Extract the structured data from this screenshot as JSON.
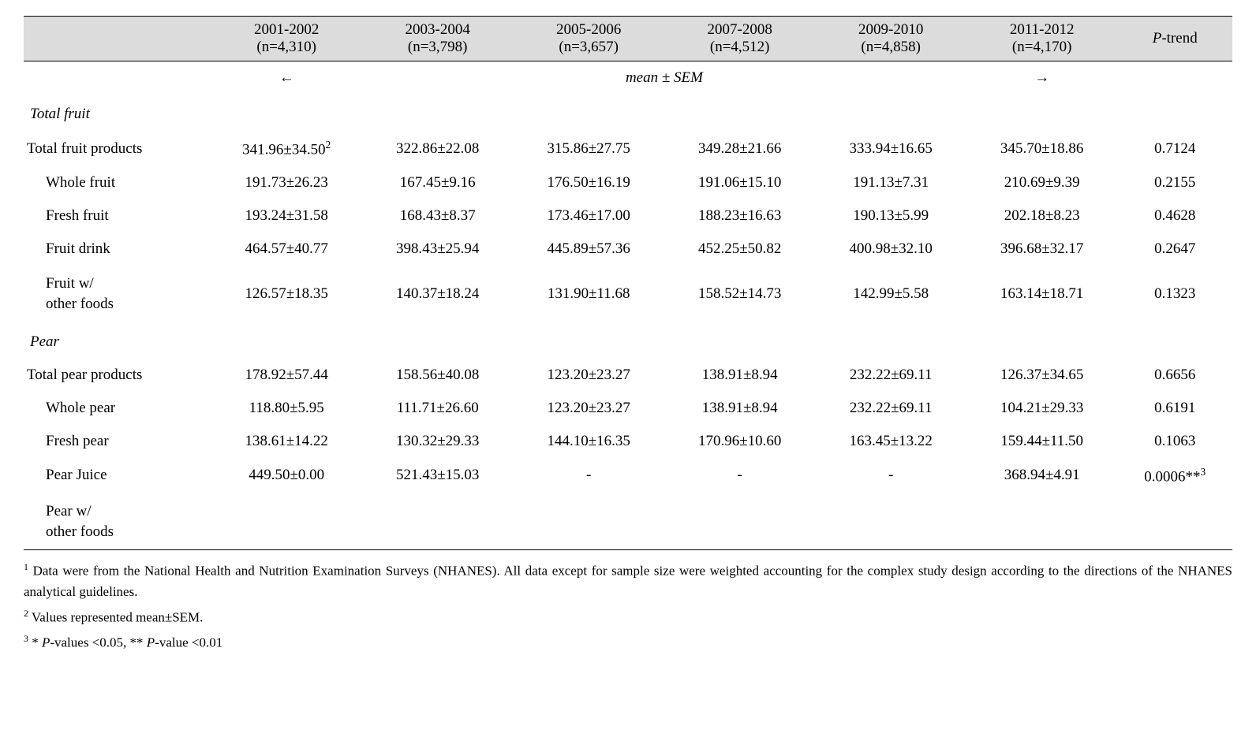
{
  "table": {
    "columns": [
      {
        "period": "2001-2002",
        "n": "(n=4,310)"
      },
      {
        "period": "2003-2004",
        "n": "(n=3,798)"
      },
      {
        "period": "2005-2006",
        "n": "(n=3,657)"
      },
      {
        "period": "2007-2008",
        "n": "(n=4,512)"
      },
      {
        "period": "2009-2010",
        "n": "(n=4,858)"
      },
      {
        "period": "2011-2012",
        "n": "(n=4,170)"
      }
    ],
    "ptrend_label_prefix": "P",
    "ptrend_label_suffix": "-trend",
    "subheader": {
      "left_arrow": "←",
      "text": "mean ± SEM",
      "right_arrow": "→"
    },
    "sections": [
      {
        "title": "Total fruit",
        "rows": [
          {
            "label": "Total fruit products",
            "indent": 0,
            "cells": [
              "341.96±34.50",
              "322.86±22.08",
              "315.86±27.75",
              "349.28±21.66",
              "333.94±16.65",
              "345.70±18.86"
            ],
            "first_sup": "2",
            "ptrend": "0.7124"
          },
          {
            "label": "Whole fruit",
            "indent": 1,
            "cells": [
              "191.73±26.23",
              "167.45±9.16",
              "176.50±16.19",
              "191.06±15.10",
              "191.13±7.31",
              "210.69±9.39"
            ],
            "ptrend": "0.2155"
          },
          {
            "label": "Fresh fruit",
            "indent": 1,
            "cells": [
              "193.24±31.58",
              "168.43±8.37",
              "173.46±17.00",
              "188.23±16.63",
              "190.13±5.99",
              "202.18±8.23"
            ],
            "ptrend": "0.4628"
          },
          {
            "label": "Fruit drink",
            "indent": 1,
            "cells": [
              "464.57±40.77",
              "398.43±25.94",
              "445.89±57.36",
              "452.25±50.82",
              "400.98±32.10",
              "396.68±32.17"
            ],
            "ptrend": "0.2647"
          },
          {
            "label_html": "Fruit w/<br>other foods",
            "indent": 1,
            "cells": [
              "126.57±18.35",
              "140.37±18.24",
              "131.90±11.68",
              "158.52±14.73",
              "142.99±5.58",
              "163.14±18.71"
            ],
            "ptrend": "0.1323"
          }
        ]
      },
      {
        "title": "Pear",
        "rows": [
          {
            "label": "Total pear products",
            "indent": 0,
            "cells": [
              "178.92±57.44",
              "158.56±40.08",
              "123.20±23.27",
              "138.91±8.94",
              "232.22±69.11",
              "126.37±34.65"
            ],
            "ptrend": "0.6656"
          },
          {
            "label": "Whole pear",
            "indent": 1,
            "cells": [
              "118.80±5.95",
              "111.71±26.60",
              "123.20±23.27",
              "138.91±8.94",
              "232.22±69.11",
              "104.21±29.33"
            ],
            "ptrend": "0.6191"
          },
          {
            "label": "Fresh pear",
            "indent": 1,
            "cells": [
              "138.61±14.22",
              "130.32±29.33",
              "144.10±16.35",
              "170.96±10.60",
              "163.45±13.22",
              "159.44±11.50"
            ],
            "ptrend": "0.1063"
          },
          {
            "label": "Pear Juice",
            "indent": 1,
            "cells": [
              "449.50±0.00",
              "521.43±15.03",
              "-",
              "-",
              "-",
              "368.94±4.91"
            ],
            "ptrend": "0.0006**",
            "ptrend_sup": "3"
          },
          {
            "label_html": "Pear w/<br>other foods",
            "indent": 1,
            "cells": [
              "",
              "",
              "",
              "",
              "",
              ""
            ],
            "ptrend": ""
          }
        ]
      }
    ]
  },
  "footnotes": {
    "n1_sup": "1",
    "n1": "Data were from the National Health and Nutrition Examination Surveys (NHANES). All data except for sample size were weighted accounting for the complex study design according to the directions of the NHANES analytical guidelines.",
    "n2_sup": "2",
    "n2": "Values represented mean±SEM.",
    "n3_sup": "3",
    "n3_a": "* ",
    "n3_b": "P",
    "n3_c": "-values <0.05, ** ",
    "n3_d": "P",
    "n3_e": "-value <0.01"
  },
  "style": {
    "col_widths_pct": [
      15.5,
      12.5,
      12.5,
      12.5,
      12.5,
      12.5,
      12.5,
      9.5
    ]
  }
}
